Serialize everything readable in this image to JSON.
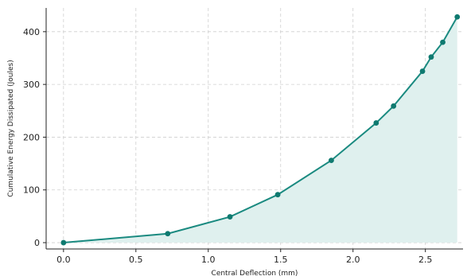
{
  "chart_data": {
    "type": "area",
    "title": "",
    "xlabel": "Central Deflection (mm)",
    "ylabel": "Cumulative Energy Dissipated (Joules)",
    "x": [
      0.0,
      0.72,
      1.15,
      1.48,
      1.85,
      2.16,
      2.28,
      2.48,
      2.54,
      2.62,
      2.72
    ],
    "series": [
      {
        "values": [
          0,
          17,
          49,
          91,
          156,
          227,
          259,
          325,
          352,
          380,
          428
        ]
      }
    ],
    "xlim": [
      -0.12,
      2.76
    ],
    "ylim": [
      -12,
      445
    ],
    "xticks": [
      0.0,
      0.5,
      1.0,
      1.5,
      2.0,
      2.5
    ],
    "xtick_labels": [
      "0.0",
      "0.5",
      "1.0",
      "1.5",
      "2.0",
      "2.5"
    ],
    "yticks": [
      0,
      100,
      200,
      300,
      400
    ],
    "ytick_labels": [
      "0",
      "100",
      "200",
      "300",
      "400"
    ],
    "grid": true,
    "legend": "none",
    "colors": {
      "line": "#1a8a80",
      "marker": "#0f7a70",
      "fill": "#dff0ee"
    }
  }
}
